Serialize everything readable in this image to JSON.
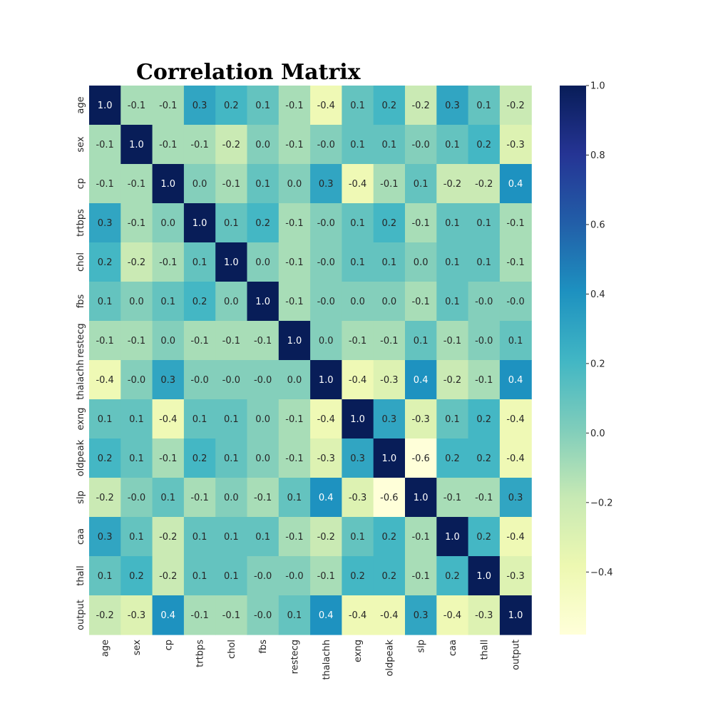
{
  "chart_data": {
    "type": "heatmap",
    "title": "Correlation Matrix",
    "x_labels": [
      "age",
      "sex",
      "cp",
      "trtbps",
      "chol",
      "fbs",
      "restecg",
      "thalachh",
      "exng",
      "oldpeak",
      "slp",
      "caa",
      "thall",
      "output"
    ],
    "y_labels": [
      "age",
      "sex",
      "cp",
      "trtbps",
      "chol",
      "fbs",
      "restecg",
      "thalachh",
      "exng",
      "oldpeak",
      "slp",
      "caa",
      "thall",
      "output"
    ],
    "values": [
      [
        1.0,
        -0.1,
        -0.1,
        0.3,
        0.2,
        0.1,
        -0.1,
        -0.4,
        0.1,
        0.2,
        -0.2,
        0.3,
        0.1,
        -0.2
      ],
      [
        -0.1,
        1.0,
        -0.1,
        -0.1,
        -0.2,
        0.0,
        -0.1,
        -0.0,
        0.1,
        0.1,
        -0.0,
        0.1,
        0.2,
        -0.3
      ],
      [
        -0.1,
        -0.1,
        1.0,
        0.0,
        -0.1,
        0.1,
        0.0,
        0.3,
        -0.4,
        -0.1,
        0.1,
        -0.2,
        -0.2,
        0.4
      ],
      [
        0.3,
        -0.1,
        0.0,
        1.0,
        0.1,
        0.2,
        -0.1,
        -0.0,
        0.1,
        0.2,
        -0.1,
        0.1,
        0.1,
        -0.1
      ],
      [
        0.2,
        -0.2,
        -0.1,
        0.1,
        1.0,
        0.0,
        -0.1,
        -0.0,
        0.1,
        0.1,
        0.0,
        0.1,
        0.1,
        -0.1
      ],
      [
        0.1,
        0.0,
        0.1,
        0.2,
        0.0,
        1.0,
        -0.1,
        -0.0,
        0.0,
        0.0,
        -0.1,
        0.1,
        -0.0,
        -0.0
      ],
      [
        -0.1,
        -0.1,
        0.0,
        -0.1,
        -0.1,
        -0.1,
        1.0,
        0.0,
        -0.1,
        -0.1,
        0.1,
        -0.1,
        -0.0,
        0.1
      ],
      [
        -0.4,
        -0.0,
        0.3,
        -0.0,
        -0.0,
        -0.0,
        0.0,
        1.0,
        -0.4,
        -0.3,
        0.4,
        -0.2,
        -0.1,
        0.4
      ],
      [
        0.1,
        0.1,
        -0.4,
        0.1,
        0.1,
        0.0,
        -0.1,
        -0.4,
        1.0,
        0.3,
        -0.3,
        0.1,
        0.2,
        -0.4
      ],
      [
        0.2,
        0.1,
        -0.1,
        0.2,
        0.1,
        0.0,
        -0.1,
        -0.3,
        0.3,
        1.0,
        -0.6,
        0.2,
        0.2,
        -0.4
      ],
      [
        -0.2,
        -0.0,
        0.1,
        -0.1,
        0.0,
        -0.1,
        0.1,
        0.4,
        -0.3,
        -0.6,
        1.0,
        -0.1,
        -0.1,
        0.3
      ],
      [
        0.3,
        0.1,
        -0.2,
        0.1,
        0.1,
        0.1,
        -0.1,
        -0.2,
        0.1,
        0.2,
        -0.1,
        1.0,
        0.2,
        -0.4
      ],
      [
        0.1,
        0.2,
        -0.2,
        0.1,
        0.1,
        -0.0,
        -0.0,
        -0.1,
        0.2,
        0.2,
        -0.1,
        0.2,
        1.0,
        -0.3
      ],
      [
        -0.2,
        -0.3,
        0.4,
        -0.1,
        -0.1,
        -0.0,
        0.1,
        0.4,
        -0.4,
        -0.4,
        0.3,
        -0.4,
        -0.3,
        1.0
      ]
    ],
    "color_scale": {
      "name": "YlGnBu",
      "min": -0.58,
      "max": 1.0,
      "ticks": [
        1.0,
        0.8,
        0.6,
        0.4,
        0.2,
        0.0,
        -0.2,
        -0.4
      ],
      "tick_labels": [
        "1.0",
        "0.8",
        "0.6",
        "0.4",
        "0.2",
        "0.0",
        "−0.2",
        "−0.4"
      ]
    },
    "annotations": true,
    "grid": false,
    "legend": "colorbar-right"
  }
}
